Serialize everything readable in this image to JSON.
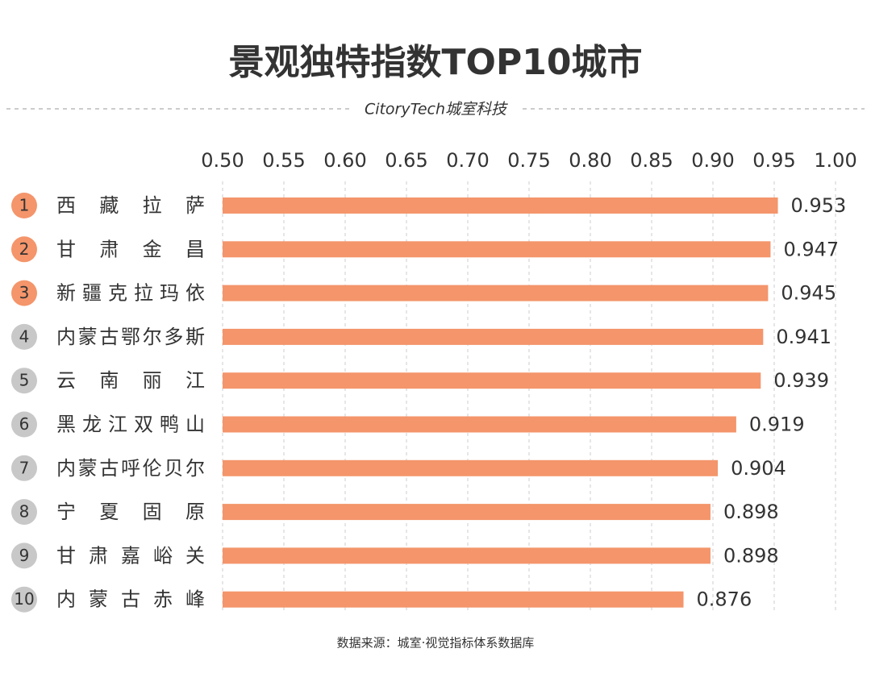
{
  "chart_data": {
    "type": "barh",
    "title": "景观独特指数TOP10城市",
    "logo": "CitoryTech城室科技",
    "source": "数据来源：城室·视觉指标体系数据库",
    "ranks": [
      1,
      2,
      3,
      4,
      5,
      6,
      7,
      8,
      9,
      10
    ],
    "rank_colors": [
      "#f4956b",
      "#f4956b",
      "#f4956b",
      "#c8c8c8",
      "#c8c8c8",
      "#c8c8c8",
      "#c8c8c8",
      "#c8c8c8",
      "#c8c8c8",
      "#c8c8c8"
    ],
    "categories": [
      "西藏拉萨",
      "甘肃金昌",
      "新疆克拉玛依",
      "内蒙古鄂尔多斯",
      "云南丽江",
      "黑龙江双鸭山",
      "内蒙古呼伦贝尔",
      "宁夏固原",
      "甘肃嘉峪关",
      "内蒙古赤峰"
    ],
    "values": [
      0.953,
      0.947,
      0.945,
      0.941,
      0.939,
      0.919,
      0.904,
      0.898,
      0.898,
      0.876
    ],
    "color": "#f4956b",
    "xlim": [
      0.5,
      1.0
    ],
    "xticks": [
      {
        "value": 0.5,
        "label": "0.50"
      },
      0.55,
      {
        "value": 0.6,
        "label": "0.60"
      },
      0.65,
      {
        "value": 0.7,
        "label": "0.70"
      },
      0.75,
      {
        "value": 0.8,
        "label": "0.80"
      },
      0.85,
      {
        "value": 0.9,
        "label": "0.90"
      },
      0.95,
      {
        "value": 1.0,
        "label": "1.00"
      }
    ],
    "grid": true
  }
}
